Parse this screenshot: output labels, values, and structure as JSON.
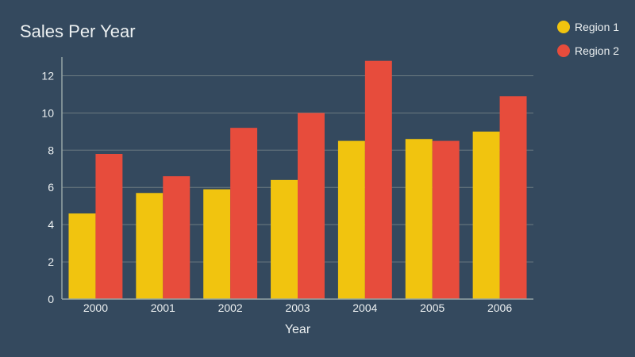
{
  "chart_data": {
    "type": "bar",
    "title": "Sales Per Year",
    "xlabel": "Year",
    "ylabel": "",
    "categories": [
      "2000",
      "2001",
      "2002",
      "2003",
      "2004",
      "2005",
      "2006"
    ],
    "series": [
      {
        "name": "Region 1",
        "color": "#f1c40f",
        "values": [
          4.6,
          5.7,
          5.9,
          6.4,
          8.5,
          8.6,
          9.0
        ]
      },
      {
        "name": "Region 2",
        "color": "#e74c3c",
        "values": [
          7.8,
          6.6,
          9.2,
          10.0,
          12.8,
          8.5,
          10.9
        ]
      }
    ],
    "ylim": [
      0,
      13
    ],
    "yticks": [
      0,
      2,
      4,
      6,
      8,
      10,
      12
    ],
    "grid": true,
    "legend_position": "top-right"
  },
  "colors": {
    "background": "#34495e",
    "text": "#ecf0f1",
    "grid": "#7f8c8d"
  }
}
